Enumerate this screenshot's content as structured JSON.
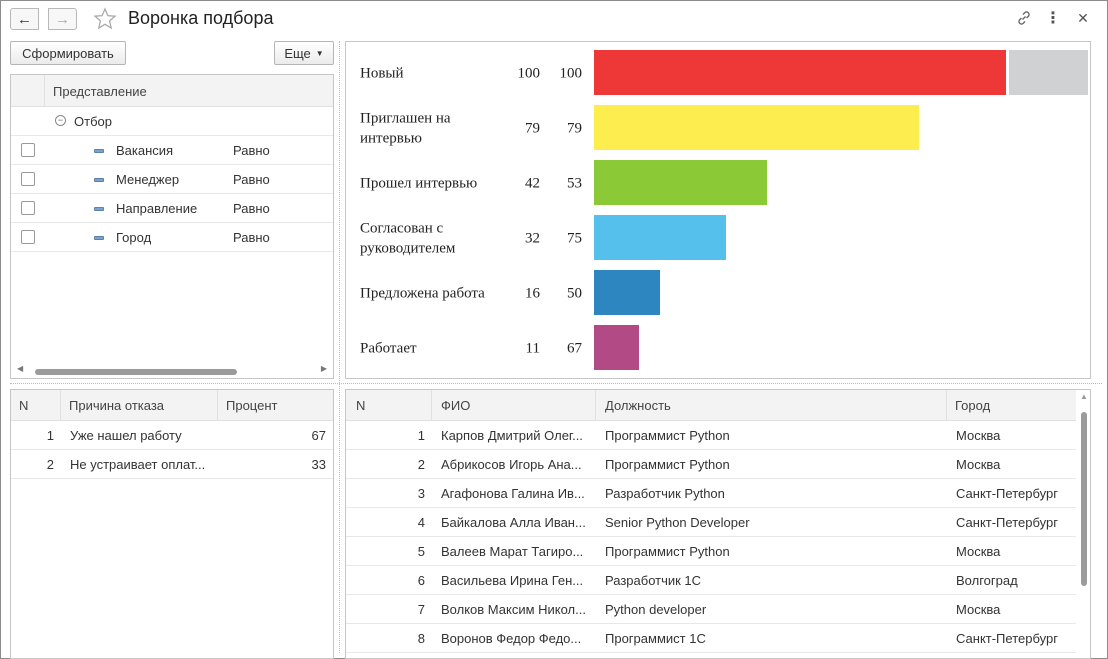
{
  "header": {
    "title": "Воронка подбора"
  },
  "toolbar": {
    "generate_label": "Сформировать",
    "more_label": "Еще"
  },
  "settings": {
    "column_header": "Представление",
    "group_label": "Отбор",
    "filters": [
      {
        "field": "Вакансия",
        "condition": "Равно",
        "checked": false
      },
      {
        "field": "Менеджер",
        "condition": "Равно",
        "checked": false
      },
      {
        "field": "Направление",
        "condition": "Равно",
        "checked": false
      },
      {
        "field": "Город",
        "condition": "Равно",
        "checked": false
      }
    ]
  },
  "chart_data": {
    "type": "bar",
    "orientation": "horizontal",
    "categories": [
      "Новый",
      "Приглашен на интервью",
      "Прошел интервью",
      "Согласован с руководителем",
      "Предложена работа",
      "Работает"
    ],
    "label_lines": [
      [
        "Новый"
      ],
      [
        "Приглашен на",
        "интервью"
      ],
      [
        "Прошел интервью"
      ],
      [
        "Согласован с",
        "руководителем"
      ],
      [
        "Предложена работа"
      ],
      [
        "Работает"
      ]
    ],
    "values": [
      100,
      79,
      42,
      32,
      16,
      11
    ],
    "secondary_values": [
      100,
      79,
      53,
      75,
      50,
      67
    ],
    "colors": [
      "#ee3737",
      "#fded4f",
      "#8bc936",
      "#56c0ec",
      "#2e86c1",
      "#b14a85"
    ],
    "remainder_color": "#cfd1d3",
    "xlim": [
      0,
      100
    ]
  },
  "reasons": {
    "columns": [
      "N",
      "Причина отказа",
      "Процент"
    ],
    "rows": [
      {
        "n": "1",
        "reason": "Уже нашел работу",
        "percent": "67"
      },
      {
        "n": "2",
        "reason": "Не устраивает оплат...",
        "percent": "33"
      }
    ]
  },
  "candidates": {
    "columns": [
      "N",
      "ФИО",
      "Должность",
      "Город"
    ],
    "rows": [
      {
        "n": "1",
        "name": "Карпов Дмитрий Олег...",
        "position": "Программист Python",
        "city": "Москва"
      },
      {
        "n": "2",
        "name": "Абрикосов Игорь Ана...",
        "position": "Программист Python",
        "city": "Москва"
      },
      {
        "n": "3",
        "name": "Агафонова Галина Ив...",
        "position": "Разработчик Python",
        "city": "Санкт-Петербург"
      },
      {
        "n": "4",
        "name": "Байкалова Алла Иван...",
        "position": "Senior Python Developer",
        "city": "Санкт-Петербург"
      },
      {
        "n": "5",
        "name": "Валеев Марат Тагиро...",
        "position": "Программист Python",
        "city": "Москва"
      },
      {
        "n": "6",
        "name": "Васильева Ирина Ген...",
        "position": "Разработчик 1С",
        "city": "Волгоград"
      },
      {
        "n": "7",
        "name": "Волков Максим Никол...",
        "position": "Python developer",
        "city": "Москва"
      },
      {
        "n": "8",
        "name": "Воронов Федор Федо...",
        "position": "Программист 1С",
        "city": "Санкт-Петербург"
      }
    ]
  }
}
